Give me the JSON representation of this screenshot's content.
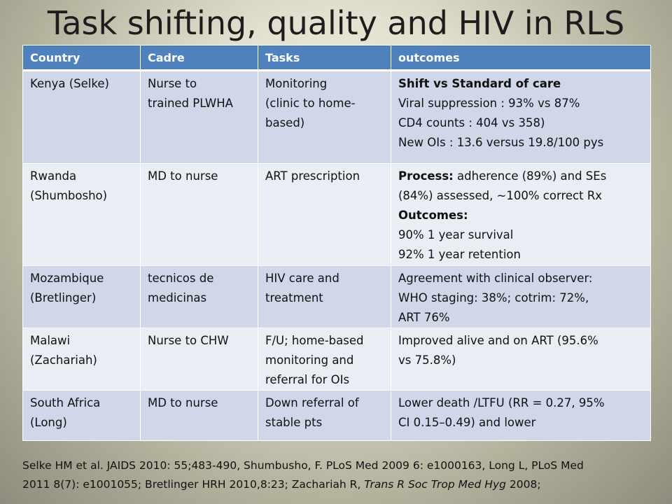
{
  "title": "Task shifting, quality and HIV in RLS",
  "table": {
    "headers": [
      "Country",
      "Cadre",
      "Tasks",
      "outcomes"
    ],
    "rows": [
      {
        "country": [
          "Kenya (Selke)"
        ],
        "cadre": [
          "Nurse to",
          "trained PLWHA"
        ],
        "tasks": [
          "Monitoring",
          "(clinic to home-",
          "based)"
        ],
        "outcomes": [
          {
            "bold": "Shift vs Standard of care",
            "text": ""
          },
          {
            "bold": "",
            "text": "Viral suppression : 93% vs 87%"
          },
          {
            "bold": "",
            "text": "CD4 counts : 404 vs 358)"
          },
          {
            "bold": "",
            "text": "New OIs : 13.6 versus 19.8/100 pys"
          }
        ]
      },
      {
        "country": [
          "Rwanda",
          "(Shumbosho)"
        ],
        "cadre": [
          "MD to nurse"
        ],
        "tasks": [
          "ART prescription"
        ],
        "outcomes": [
          {
            "bold": "Process:",
            "text": " adherence (89%) and SEs"
          },
          {
            "bold": "",
            "text": "(84%) assessed, ~100% correct Rx"
          },
          {
            "bold": "Outcomes:",
            "text": ""
          },
          {
            "bold": "",
            "text": "90% 1 year survival"
          },
          {
            "bold": "",
            "text": "92% 1 year retention"
          }
        ]
      },
      {
        "country": [
          "Mozambique",
          "(Bretlinger)"
        ],
        "cadre": [
          "tecnicos de",
          "medicinas"
        ],
        "tasks": [
          "HIV care and",
          "treatment"
        ],
        "outcomes": [
          {
            "bold": "",
            "text": "Agreement with clinical observer:"
          },
          {
            "bold": "",
            "text": "WHO staging: 38%; cotrim: 72%,"
          },
          {
            "bold": "",
            "text": "ART 76%"
          }
        ]
      },
      {
        "country": [
          "Malawi",
          "(Zachariah)"
        ],
        "cadre": [
          "Nurse to CHW"
        ],
        "tasks": [
          "F/U; home-based",
          "monitoring and",
          "referral for OIs"
        ],
        "outcomes": [
          {
            "bold": "",
            "text": "Improved alive and on ART (95.6%"
          },
          {
            "bold": "",
            "text": "vs 75.8%)"
          }
        ]
      },
      {
        "country": [
          "South Africa",
          "(Long)"
        ],
        "cadre": [
          "MD to nurse"
        ],
        "tasks": [
          "Down referral of",
          "stable pts"
        ],
        "outcomes": [
          {
            "bold": "",
            "text": "Lower death /LTFU (RR = 0.27, 95%"
          },
          {
            "bold": "",
            "text": "CI 0.15–0.49) and lower"
          }
        ]
      }
    ]
  },
  "references": {
    "line1": "Selke HM et al. JAIDS 2010: 55;483-490, Shumbusho, F. PLoS Med 2009 6: e1000163, Long L, PLoS Med",
    "line2_start": "2011 8(7): e1001055; Bretlinger HRH 2010,8:23; Zachariah R, ",
    "line2_italic": "Trans R Soc Trop Med Hyg",
    "line2_end": " 2008;"
  }
}
